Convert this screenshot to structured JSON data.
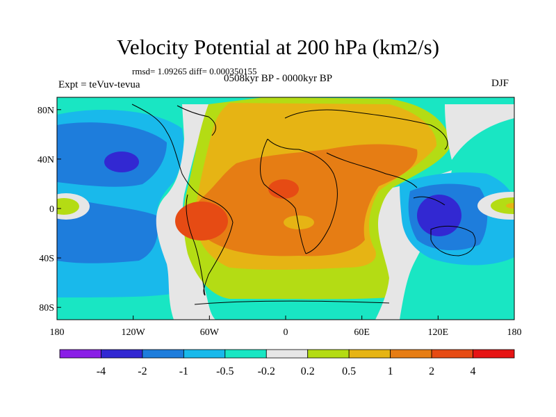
{
  "title": "Velocity Potential at 200 hPa (km2/s)",
  "stats": "rmsd= 1.09265 diff= 0.000350155",
  "experiment": "Expt = teVuv-tevua",
  "period": "0508kyr BP - 0000kyr BP",
  "season": "DJF",
  "map": {
    "lat_labels": [
      "80N",
      "40N",
      "0",
      "40S",
      "80S"
    ],
    "lon_labels": [
      "180",
      "120W",
      "60W",
      "0",
      "60E",
      "120E",
      "180"
    ],
    "lon_range": [
      -180,
      180
    ],
    "lat_range": [
      -90,
      90
    ]
  },
  "colorbar": {
    "labels": [
      "-4",
      "-2",
      "-1",
      "-0.5",
      "-0.2",
      "0.2",
      "0.5",
      "1",
      "2",
      "4"
    ],
    "colors": [
      "#8a1ee6",
      "#3228d2",
      "#1e7ddc",
      "#19b9eb",
      "#19e6c3",
      "#e6e6e6",
      "#b4dc14",
      "#e6b414",
      "#e67d14",
      "#e64b14",
      "#e61414"
    ]
  }
}
